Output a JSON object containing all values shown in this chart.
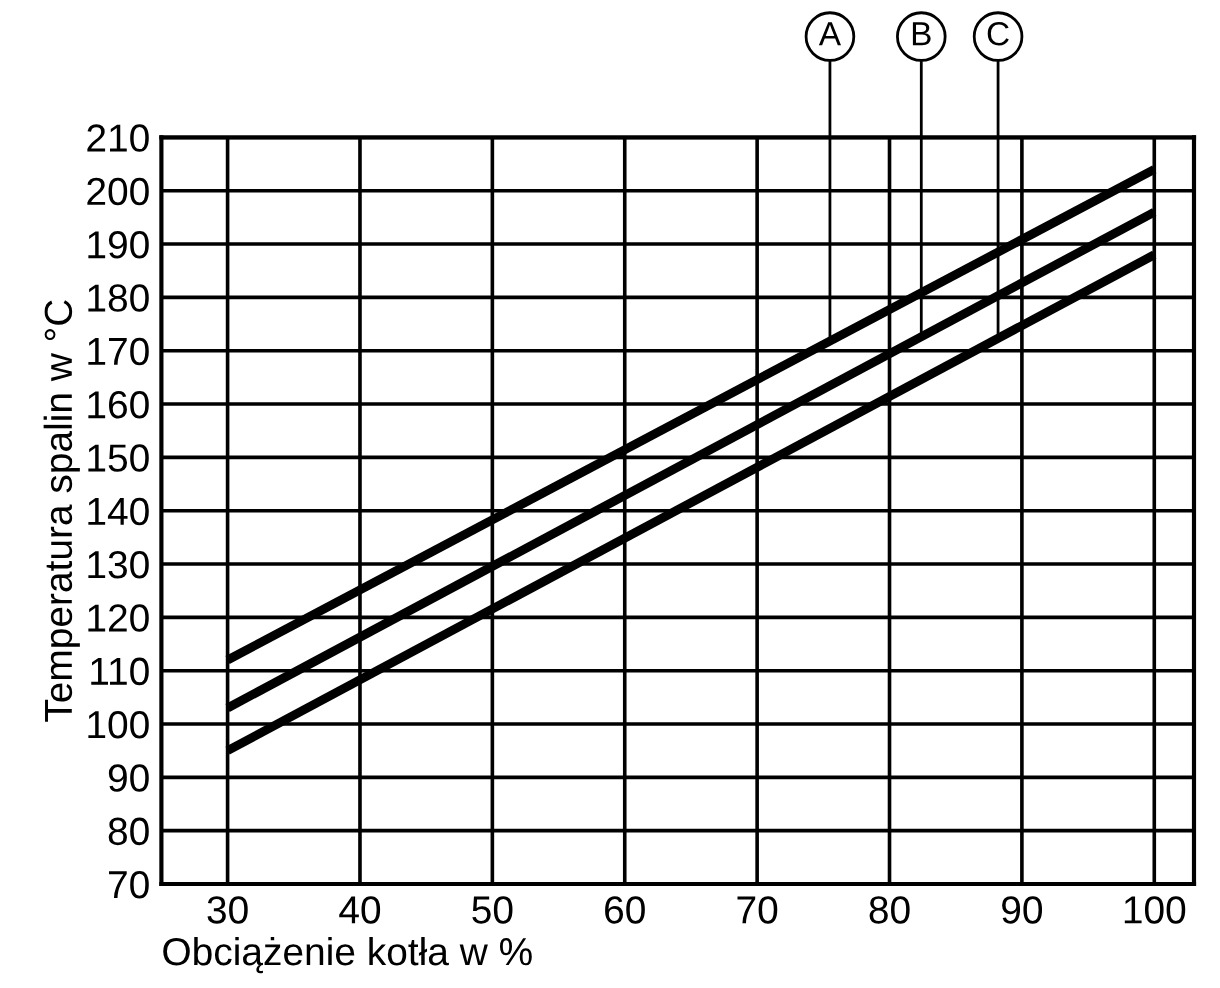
{
  "chart_data": {
    "type": "line",
    "xlabel": "Obciążenie kotła w %",
    "ylabel": "Temperatura spalin w °C",
    "xlim": [
      25,
      103
    ],
    "ylim": [
      70,
      210
    ],
    "xticks": [
      30,
      40,
      50,
      60,
      70,
      80,
      90,
      100
    ],
    "yticks": [
      70,
      80,
      90,
      100,
      110,
      120,
      130,
      140,
      150,
      160,
      170,
      180,
      190,
      200,
      210
    ],
    "x": [
      30,
      100
    ],
    "grid": true,
    "marker": "none",
    "line_style": "solid",
    "series": [
      {
        "color": "#000000",
        "values": [
          112,
          204
        ]
      },
      {
        "color": "#000000",
        "values": [
          103,
          196
        ]
      },
      {
        "color": "#000000",
        "values": [
          95,
          188
        ]
      }
    ],
    "annotations": [
      {
        "text": "A",
        "x": 75.5,
        "y": 172
      },
      {
        "text": "B",
        "x": 82.4,
        "y": 173
      },
      {
        "text": "C",
        "x": 88.2,
        "y": 172
      }
    ]
  }
}
